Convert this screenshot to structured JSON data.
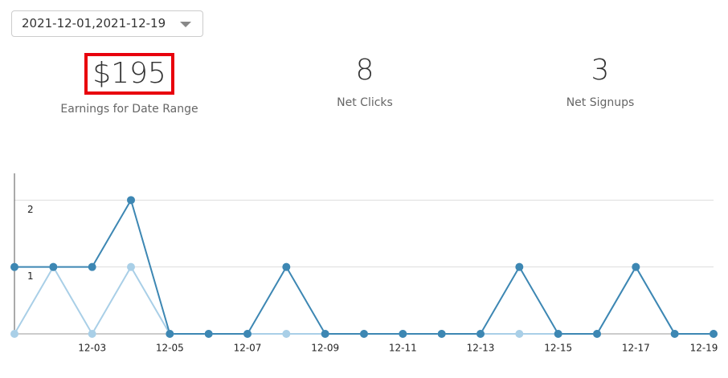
{
  "dropdown": {
    "value": "2021-12-01,2021-12-19"
  },
  "stats": [
    {
      "value": "$195",
      "label": "Earnings for Date Range"
    },
    {
      "value": "8",
      "label": "Net Clicks"
    },
    {
      "value": "3",
      "label": "Net Signups"
    }
  ],
  "chart_data": {
    "type": "line",
    "categories": [
      null,
      null,
      "12-03",
      null,
      "12-05",
      null,
      "12-07",
      null,
      "12-09",
      null,
      "12-11",
      null,
      "12-13",
      null,
      "12-15",
      null,
      "12-17",
      null,
      "12-19"
    ],
    "series": [
      {
        "color": "#3d87b3",
        "values": [
          1,
          1,
          1,
          2,
          0,
          0,
          0,
          1,
          0,
          0,
          0,
          0,
          0,
          1,
          0,
          0,
          1,
          0,
          0
        ]
      },
      {
        "color": "#a9cfe7",
        "values": [
          0,
          1,
          0,
          1,
          0,
          0,
          0,
          0,
          0,
          0,
          0,
          0,
          0,
          0,
          0,
          0,
          1,
          0,
          0
        ]
      }
    ],
    "ylim": [
      0,
      2.4
    ],
    "yticks": [
      1,
      2
    ],
    "grid": true
  }
}
